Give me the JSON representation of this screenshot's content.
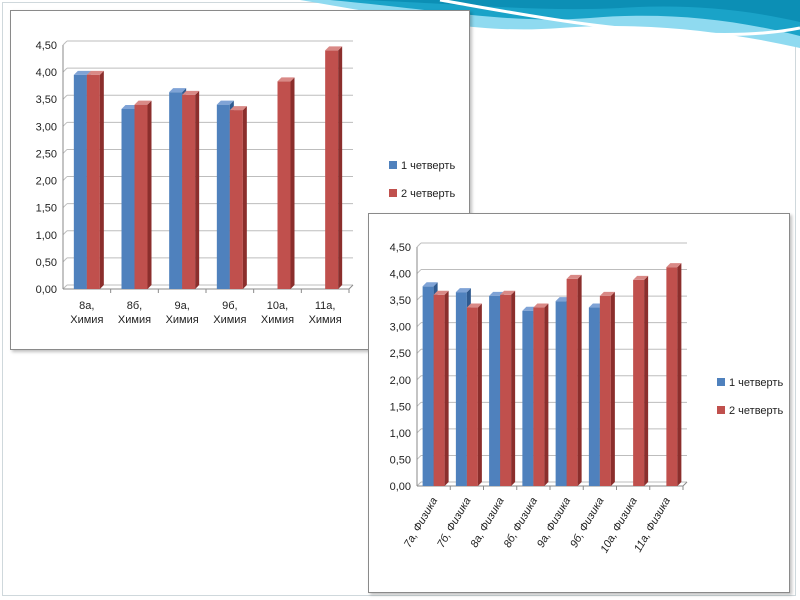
{
  "colors": {
    "series1": "#4f81bd",
    "series1_side": "#2f5a8f",
    "series1_top": "#7fa3d6",
    "series2": "#c0504d",
    "series2_side": "#8b2e2c",
    "series2_top": "#d98986",
    "wave_dark": "#1aa3c8",
    "wave_light": "#8fdaf0"
  },
  "chart_data": [
    {
      "type": "bar",
      "categories": [
        [
          "8а,",
          "Химия"
        ],
        [
          "8б,",
          "Химия"
        ],
        [
          "9а,",
          "Химия"
        ],
        [
          "9б,",
          "Химия"
        ],
        [
          "10а,",
          "Химия"
        ],
        [
          "11а,",
          "Химия"
        ]
      ],
      "ylim": [
        0,
        4.5
      ],
      "yticks": [
        "0,00",
        "0,50",
        "1,00",
        "1,50",
        "2,00",
        "2,50",
        "3,00",
        "3,50",
        "4,00",
        "4,50"
      ],
      "series": [
        {
          "name": "1 четверть",
          "values": [
            3.95,
            3.32,
            3.63,
            3.4,
            null,
            null
          ]
        },
        {
          "name": "2 четверть",
          "values": [
            3.95,
            3.4,
            3.58,
            3.3,
            3.83,
            4.4
          ]
        }
      ],
      "legend": "right",
      "label_rotation": 0
    },
    {
      "type": "bar",
      "categories": [
        "7а, Физика",
        "7б, Физика",
        "8а, Физика",
        "8б, Физика",
        "9а, Физика",
        "9б, Физика",
        "10а, Физика",
        "11а, Физика"
      ],
      "ylim": [
        0,
        4.5
      ],
      "yticks": [
        "0,00",
        "0,50",
        "1,00",
        "1,50",
        "2,00",
        "2,50",
        "3,00",
        "3,50",
        "4,00",
        "4,50"
      ],
      "series": [
        {
          "name": "1 четверть",
          "values": [
            3.76,
            3.65,
            3.58,
            3.3,
            3.48,
            3.36,
            null,
            null
          ]
        },
        {
          "name": "2 четверть",
          "values": [
            3.6,
            3.36,
            3.6,
            3.36,
            3.9,
            3.58,
            3.88,
            4.12
          ]
        }
      ],
      "legend": "right",
      "label_rotation": -60
    }
  ]
}
